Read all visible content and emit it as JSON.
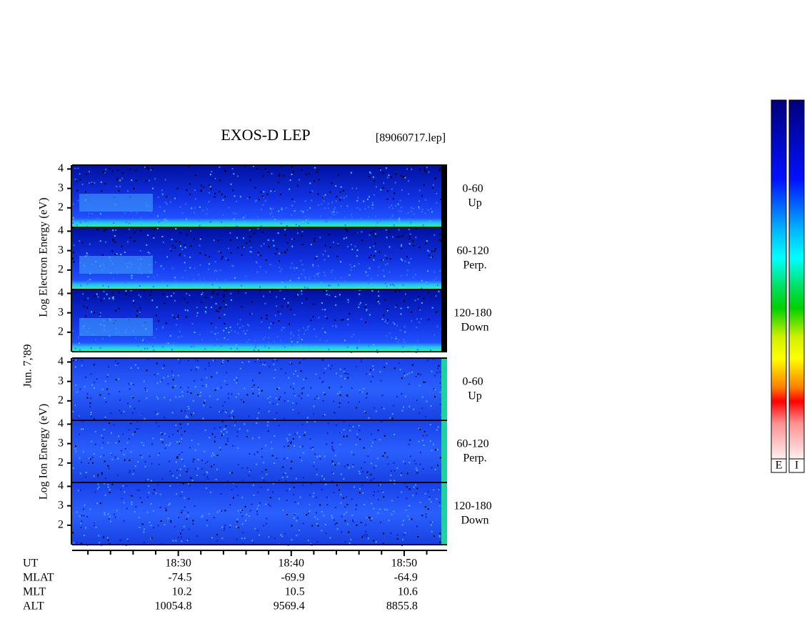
{
  "chart_data": {
    "type": "spectrogram",
    "title": "EXOS-D LEP",
    "file_label": "[89060717.lep]",
    "date_label": "Jun. 7,'89",
    "electron_axis_label": "Log Electron Energy (eV)",
    "ion_axis_label": "Log Ion Energy (eV)",
    "panels": [
      {
        "species": "electron",
        "angle": "0-60",
        "direction": "Up"
      },
      {
        "species": "electron",
        "angle": "60-120",
        "direction": "Perp."
      },
      {
        "species": "electron",
        "angle": "120-180",
        "direction": "Down"
      },
      {
        "species": "ion",
        "angle": "0-60",
        "direction": "Up"
      },
      {
        "species": "ion",
        "angle": "60-120",
        "direction": "Perp."
      },
      {
        "species": "ion",
        "angle": "120-180",
        "direction": "Down"
      }
    ],
    "ylim": [
      1,
      4.2
    ],
    "yticks": [
      2,
      3,
      4
    ],
    "xlim": [
      20.6,
      53.8
    ],
    "xticks": [
      22,
      24,
      26,
      28,
      {
        "value": 30,
        "label": "18:30"
      },
      32,
      34,
      36,
      38,
      {
        "value": 40,
        "label": "18:40"
      },
      42,
      44,
      46,
      48,
      {
        "value": 50,
        "label": "18:50"
      },
      52
    ],
    "orbit_labels": [
      "UT",
      "MLAT",
      "MLT",
      "ALT"
    ],
    "orbit": [
      {
        "time": 30,
        "MLAT": -74.5,
        "MLT": 10.2,
        "ALT": 10054.8
      },
      {
        "time": 40,
        "MLAT": -69.9,
        "MLT": 10.5,
        "ALT": 9569.4
      },
      {
        "time": 50,
        "MLAT": -64.9,
        "MLT": 10.6,
        "ALT": 8855.8
      }
    ],
    "colorbar_labels": [
      "E",
      "I"
    ]
  }
}
